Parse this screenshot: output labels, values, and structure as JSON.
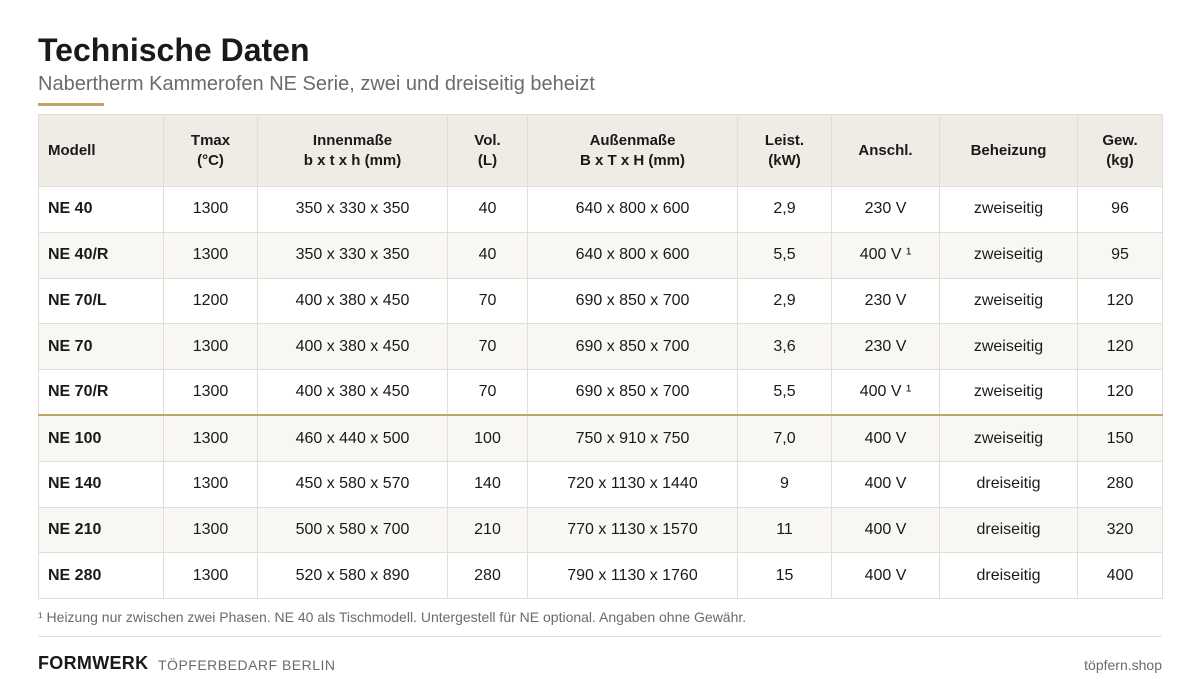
{
  "page": {
    "title": "Technische Daten",
    "subtitle": "Nabertherm Kammerofen NE Serie, zwei und dreiseitig beheizt"
  },
  "table": {
    "headers": [
      {
        "line1": "Modell",
        "line2": ""
      },
      {
        "line1": "Tmax",
        "line2": "(°C)"
      },
      {
        "line1": "Innenmaße",
        "line2": "b x t x h (mm)"
      },
      {
        "line1": "Vol.",
        "line2": "(L)"
      },
      {
        "line1": "Außenmaße",
        "line2": "B x T x H (mm)"
      },
      {
        "line1": "Leist.",
        "line2": "(kW)"
      },
      {
        "line1": "Anschl.",
        "line2": ""
      },
      {
        "line1": "Beheizung",
        "line2": ""
      },
      {
        "line1": "Gew.",
        "line2": "(kg)"
      }
    ],
    "rows": [
      [
        "NE 40",
        "1300",
        "350 x 330 x 350",
        "40",
        "640 x 800 x 600",
        "2,9",
        "230 V",
        "zweiseitig",
        "96"
      ],
      [
        "NE 40/R",
        "1300",
        "350 x 330 x 350",
        "40",
        "640 x 800 x 600",
        "5,5",
        "400 V ¹",
        "zweiseitig",
        "95"
      ],
      [
        "NE 70/L",
        "1200",
        "400 x 380 x 450",
        "70",
        "690 x 850 x 700",
        "2,9",
        "230 V",
        "zweiseitig",
        "120"
      ],
      [
        "NE 70",
        "1300",
        "400 x 380 x 450",
        "70",
        "690 x 850 x 700",
        "3,6",
        "230 V",
        "zweiseitig",
        "120"
      ],
      [
        "NE 70/R",
        "1300",
        "400 x 380 x 450",
        "70",
        "690 x 850 x 700",
        "5,5",
        "400 V ¹",
        "zweiseitig",
        "120"
      ],
      [
        "NE 100",
        "1300",
        "460 x 440 x 500",
        "100",
        "750 x 910 x 750",
        "7,0",
        "400 V",
        "zweiseitig",
        "150"
      ],
      [
        "NE 140",
        "1300",
        "450 x 580 x 570",
        "140",
        "720 x 1130 x 1440",
        "9",
        "400 V",
        "dreiseitig",
        "280"
      ],
      [
        "NE 210",
        "1300",
        "500 x 580 x 700",
        "210",
        "770 x 1130 x 1570",
        "11",
        "400 V",
        "dreiseitig",
        "320"
      ],
      [
        "NE 280",
        "1300",
        "520 x 580 x 890",
        "280",
        "790 x 1130 x 1760",
        "15",
        "400 V",
        "dreiseitig",
        "400"
      ]
    ]
  },
  "footnote": "¹ Heizung nur zwischen zwei Phasen.  NE 40 als Tischmodell.  Untergestell für NE optional.  Angaben ohne Gewähr.",
  "footer": {
    "brand": "FORMWERK",
    "brand_sub": "TÖPFERBEDARF BERLIN",
    "website": "töpfern.shop"
  },
  "colors": {
    "accent": "#bfa46a",
    "header_bg": "#efece6",
    "row_alt_bg": "#f8f7f3"
  }
}
